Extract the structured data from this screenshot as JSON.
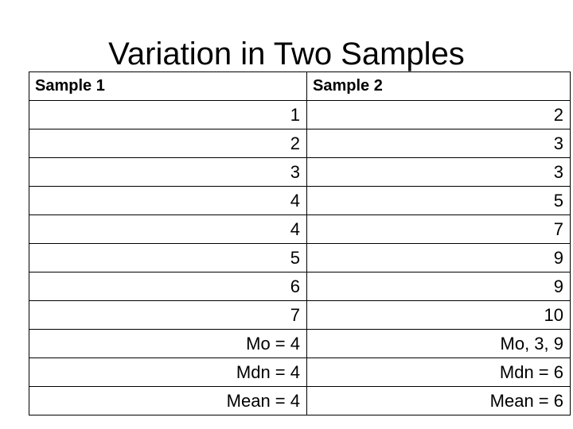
{
  "title": "Variation in Two Samples",
  "table": {
    "headers": [
      "Sample 1",
      "Sample 2"
    ],
    "rows": [
      [
        "1",
        "2"
      ],
      [
        "2",
        "3"
      ],
      [
        "3",
        "3"
      ],
      [
        "4",
        "5"
      ],
      [
        "4",
        "7"
      ],
      [
        "5",
        "9"
      ],
      [
        "6",
        "9"
      ],
      [
        "7",
        "10"
      ],
      [
        "Mo = 4",
        "Mo, 3, 9"
      ],
      [
        "Mdn = 4",
        "Mdn = 6"
      ],
      [
        "Mean = 4",
        "Mean = 6"
      ]
    ]
  }
}
